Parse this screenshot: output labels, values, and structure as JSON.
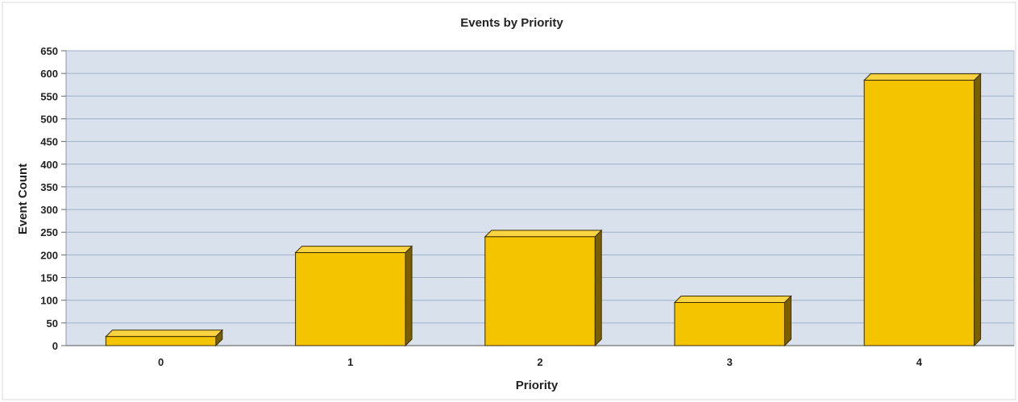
{
  "chart_data": {
    "type": "bar",
    "title": "Events by Priority",
    "xlabel": "Priority",
    "ylabel": "Event Count",
    "categories": [
      "0",
      "1",
      "2",
      "3",
      "4"
    ],
    "values": [
      20,
      205,
      240,
      95,
      585
    ],
    "ylim": [
      0,
      650
    ],
    "yticks": [
      0,
      50,
      100,
      150,
      200,
      250,
      300,
      350,
      400,
      450,
      500,
      550,
      600,
      650
    ],
    "grid": true,
    "legend": "none",
    "colors": {
      "bar_front": "#F5C400",
      "bar_top": "#F9D440",
      "bar_side": "#7A5F00",
      "plot_background": "#D9E1EC",
      "grid_line": "#9FB0C8"
    }
  }
}
